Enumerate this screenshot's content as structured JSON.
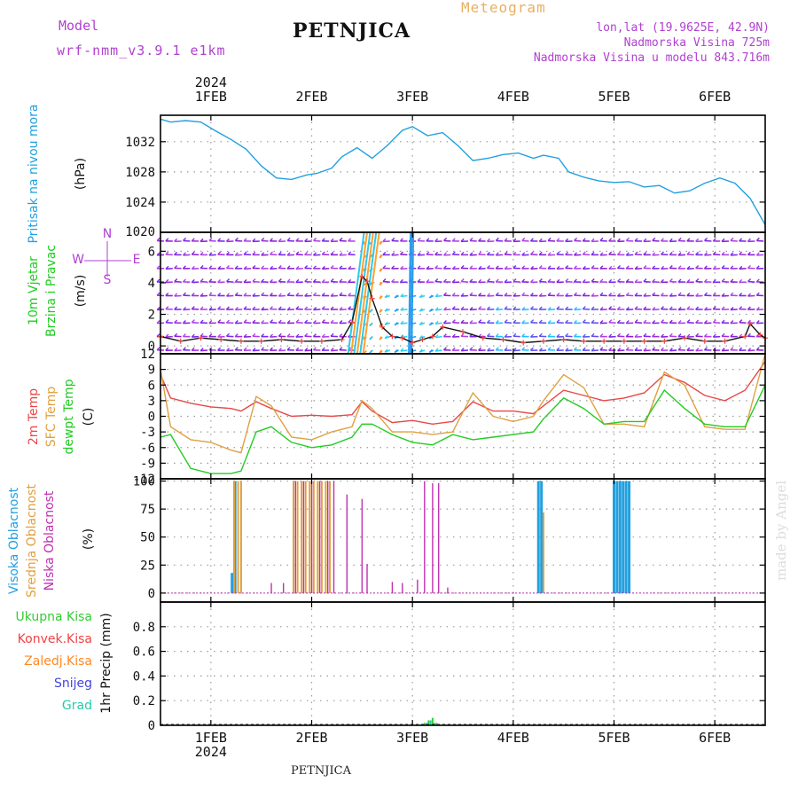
{
  "header": {
    "model_label": "Model",
    "model_value": "wrf-nmm_v3.9.1 e1km",
    "station": "PETNJICA",
    "title": "Meteogram",
    "lonlat": "lon,lat (19.9625E, 42.9N)",
    "altitude": "Nadmorska Visina 725m",
    "model_altitude": "Nadmorska Visina u modelu 843.716m"
  },
  "footer": {
    "station": "PETNJICA",
    "watermark": "made by Angel"
  },
  "colors": {
    "pressure": "#22a0e0",
    "temp2m": "#e84848",
    "sfc": "#e0a040",
    "dew": "#22cc22",
    "high_cloud": "#22a0e0",
    "mid_cloud": "#e0a040",
    "low_cloud": "#c030b0",
    "precip_total": "#33cc33",
    "precip_conv": "#ee4444",
    "precip_frozen": "#ff8822",
    "snow": "#4444dd",
    "hail": "#22ccaa",
    "wind_label": "#b040d0"
  },
  "axes": {
    "time": {
      "x_start": 31.5,
      "x_end": 37.5,
      "ticks": [
        32,
        33,
        34,
        35,
        36,
        37
      ],
      "tick_labels": [
        "1FEB",
        "2FEB",
        "3FEB",
        "4FEB",
        "5FEB",
        "6FEB"
      ],
      "year": "2024"
    }
  },
  "chart_data": [
    {
      "type": "line",
      "id": "pressure",
      "ylabel": "(hPa)",
      "side_labels": [
        "Pritisak na nivou mora"
      ],
      "ylim": [
        1020,
        1035.5
      ],
      "yticks": [
        1024,
        1028,
        1032
      ],
      "ytick_labels": [
        "1024",
        "1028",
        "1032"
      ],
      "top_clip_label": "1020",
      "grid": true,
      "series": [
        {
          "x": [
            31.5,
            31.6,
            31.75,
            31.9,
            32.05,
            32.2,
            32.35,
            32.5,
            32.65,
            32.8,
            32.95,
            33.05,
            33.2,
            33.3,
            33.45,
            33.6,
            33.75,
            33.9,
            34.0,
            34.15,
            34.3,
            34.45,
            34.6,
            34.75,
            34.9,
            35.05,
            35.2,
            35.3,
            35.45,
            35.55,
            35.7,
            35.85,
            36.0,
            36.15,
            36.3,
            36.45,
            36.6,
            36.75,
            36.9,
            37.05,
            37.2,
            37.35,
            37.5
          ],
          "y": [
            1035.0,
            1034.6,
            1034.8,
            1034.6,
            1033.4,
            1032.3,
            1031.0,
            1028.8,
            1027.2,
            1027.0,
            1027.6,
            1027.8,
            1028.5,
            1030.0,
            1031.2,
            1029.8,
            1031.5,
            1033.5,
            1034.0,
            1032.8,
            1033.2,
            1031.5,
            1029.5,
            1029.8,
            1030.3,
            1030.5,
            1029.8,
            1030.2,
            1029.8,
            1028.0,
            1027.3,
            1026.8,
            1026.6,
            1026.7,
            1026.0,
            1026.2,
            1025.2,
            1025.5,
            1026.5,
            1027.2,
            1026.5,
            1024.5,
            1021.0
          ]
        }
      ]
    },
    {
      "type": "line",
      "id": "wind",
      "ylabel": "(m/s)",
      "side_labels": [
        "10m Vjetar",
        "Brzina i Pravac"
      ],
      "compass": {
        "n": "N",
        "s": "S",
        "w": "W",
        "e": "E"
      },
      "ylim": [
        -0.5,
        7.2
      ],
      "yticks": [
        0,
        2,
        4,
        6
      ],
      "ytick_labels": [
        "0",
        "2",
        "4",
        "6"
      ],
      "grid": true,
      "series": [
        {
          "name": "speed",
          "x": [
            31.5,
            31.7,
            31.9,
            32.1,
            32.3,
            32.5,
            32.7,
            32.9,
            33.1,
            33.3,
            33.4,
            33.5,
            33.55,
            33.6,
            33.7,
            33.8,
            33.9,
            34.0,
            34.1,
            34.2,
            34.3,
            34.5,
            34.7,
            34.9,
            35.1,
            35.3,
            35.5,
            35.7,
            35.9,
            36.1,
            36.3,
            36.5,
            36.7,
            36.9,
            37.1,
            37.3,
            37.35,
            37.45,
            37.5
          ],
          "y": [
            0.6,
            0.3,
            0.5,
            0.4,
            0.3,
            0.3,
            0.4,
            0.3,
            0.3,
            0.4,
            1.5,
            4.4,
            4.1,
            3.0,
            1.2,
            0.6,
            0.5,
            0.2,
            0.4,
            0.6,
            1.2,
            0.9,
            0.5,
            0.4,
            0.2,
            0.3,
            0.4,
            0.3,
            0.3,
            0.3,
            0.3,
            0.3,
            0.5,
            0.3,
            0.3,
            0.6,
            1.4,
            0.7,
            0.5
          ]
        }
      ]
    },
    {
      "type": "line",
      "id": "temperature",
      "ylabel": "(C)",
      "side_labels": [
        "2m Temp",
        "SFC Temp",
        "dewpt Temp"
      ],
      "ylim": [
        -12,
        12
      ],
      "yticks": [
        -12,
        -9,
        -6,
        -3,
        0,
        3,
        6,
        9,
        12
      ],
      "ytick_labels": [
        "-12",
        "-9",
        "-6",
        "-3",
        "0",
        "3",
        "6",
        "9",
        "12"
      ],
      "grid": true,
      "series": [
        {
          "name": "2m Temp",
          "x": [
            31.5,
            31.6,
            31.8,
            32.0,
            32.2,
            32.3,
            32.45,
            32.6,
            32.8,
            33.0,
            33.2,
            33.4,
            33.5,
            33.6,
            33.8,
            34.0,
            34.2,
            34.4,
            34.6,
            34.8,
            35.0,
            35.2,
            35.3,
            35.5,
            35.7,
            35.9,
            36.1,
            36.3,
            36.5,
            36.7,
            36.9,
            37.1,
            37.3,
            37.5
          ],
          "y": [
            8.0,
            3.5,
            2.5,
            1.8,
            1.5,
            1.0,
            2.8,
            1.5,
            0.0,
            0.2,
            0.0,
            0.3,
            2.8,
            1.0,
            -1.2,
            -0.8,
            -1.5,
            -1.0,
            2.8,
            1.0,
            1.0,
            0.5,
            2.0,
            5.0,
            4.0,
            3.0,
            3.5,
            4.5,
            8.0,
            6.5,
            4.0,
            3.0,
            5.0,
            10.5
          ]
        },
        {
          "name": "SFC Temp",
          "x": [
            31.5,
            31.6,
            31.8,
            32.0,
            32.2,
            32.3,
            32.45,
            32.6,
            32.8,
            33.0,
            33.2,
            33.4,
            33.5,
            33.6,
            33.8,
            34.0,
            34.2,
            34.4,
            34.6,
            34.8,
            35.0,
            35.2,
            35.3,
            35.5,
            35.7,
            35.9,
            36.1,
            36.3,
            36.5,
            36.7,
            36.9,
            37.1,
            37.3,
            37.5
          ],
          "y": [
            9.0,
            -2.0,
            -4.5,
            -5.0,
            -6.5,
            -7.0,
            3.8,
            2.0,
            -4.0,
            -4.5,
            -3.0,
            -2.0,
            3.0,
            1.5,
            -3.0,
            -3.0,
            -3.5,
            -3.0,
            4.5,
            0.0,
            -1.0,
            0.0,
            3.0,
            8.0,
            5.5,
            -1.5,
            -1.5,
            -2.0,
            8.5,
            6.0,
            -2.0,
            -2.5,
            -2.5,
            12.0
          ]
        },
        {
          "name": "dewpt Temp",
          "x": [
            31.5,
            31.6,
            31.8,
            32.0,
            32.2,
            32.3,
            32.45,
            32.6,
            32.8,
            33.0,
            33.2,
            33.4,
            33.5,
            33.6,
            33.8,
            34.0,
            34.2,
            34.4,
            34.6,
            34.8,
            35.0,
            35.2,
            35.3,
            35.5,
            35.7,
            35.9,
            36.1,
            36.3,
            36.5,
            36.7,
            36.9,
            37.1,
            37.3,
            37.5
          ],
          "y": [
            -4.0,
            -3.5,
            -10.0,
            -11.0,
            -11.0,
            -10.5,
            -3.0,
            -2.0,
            -5.0,
            -6.0,
            -5.5,
            -4.0,
            -1.5,
            -1.5,
            -3.5,
            -5.0,
            -5.5,
            -3.5,
            -4.5,
            -4.0,
            -3.5,
            -3.0,
            -0.5,
            3.5,
            1.5,
            -1.5,
            -1.0,
            -1.0,
            5.0,
            1.5,
            -1.5,
            -2.0,
            -2.0,
            6.0
          ]
        }
      ]
    },
    {
      "type": "bar",
      "id": "clouds",
      "ylabel": "(%)",
      "side_labels": [
        "Visoka Oblacnost",
        "Srednja Oblacnost",
        "Niska Oblacnost"
      ],
      "ylim": [
        -8,
        102
      ],
      "yticks": [
        0,
        25,
        50,
        75,
        100
      ],
      "ytick_labels": [
        "0",
        "25",
        "50",
        "75",
        "100"
      ],
      "grid": true,
      "series": [
        {
          "name": "Visoka Oblacnost",
          "x": [
            32.21,
            32.24,
            35.25,
            35.28,
            36.0,
            36.03,
            36.06,
            36.09,
            36.12,
            36.15
          ],
          "y": [
            18,
            100,
            100,
            100,
            100,
            100,
            100,
            100,
            100,
            100
          ]
        },
        {
          "name": "Srednja Oblacnost",
          "x": [
            32.23,
            32.27,
            32.3,
            32.82,
            32.86,
            32.9,
            32.94,
            32.98,
            33.02,
            33.06,
            33.1,
            33.14,
            33.18,
            35.3
          ],
          "y": [
            100,
            100,
            100,
            100,
            100,
            100,
            100,
            100,
            100,
            100,
            100,
            100,
            100,
            72
          ]
        },
        {
          "name": "Niska Oblacnost",
          "x": [
            32.6,
            32.72,
            32.84,
            32.92,
            33.0,
            33.08,
            33.16,
            33.22,
            33.35,
            33.5,
            33.55,
            33.8,
            33.9,
            34.05,
            34.12,
            34.2,
            34.26,
            34.35
          ],
          "y": [
            9,
            9,
            100,
            100,
            100,
            100,
            100,
            100,
            88,
            84,
            26,
            10,
            9,
            12,
            100,
            98,
            98,
            5
          ]
        }
      ]
    },
    {
      "type": "bar",
      "id": "precip",
      "ylabel": "1hr Precip (mm)",
      "side_labels": [
        "Ukupna Kisa",
        "Konvek.Kisa",
        "Zaledj.Kisa",
        "Snijeg",
        "Grad"
      ],
      "ylim": [
        0,
        1.0
      ],
      "yticks": [
        0,
        0.2,
        0.4,
        0.6,
        0.8
      ],
      "ytick_labels": [
        "0",
        "0.2",
        "0.4",
        "0.6",
        "0.8"
      ],
      "grid": true,
      "series": [
        {
          "name": "Ukupna Kisa",
          "x": [
            33.38,
            34.12,
            34.16,
            34.2,
            34.24
          ],
          "y": [
            0.01,
            0.02,
            0.04,
            0.06,
            0.02
          ]
        },
        {
          "name": "Grad",
          "x": [
            34.14,
            34.18,
            34.22
          ],
          "y": [
            0.02,
            0.04,
            0.02
          ]
        }
      ]
    }
  ]
}
